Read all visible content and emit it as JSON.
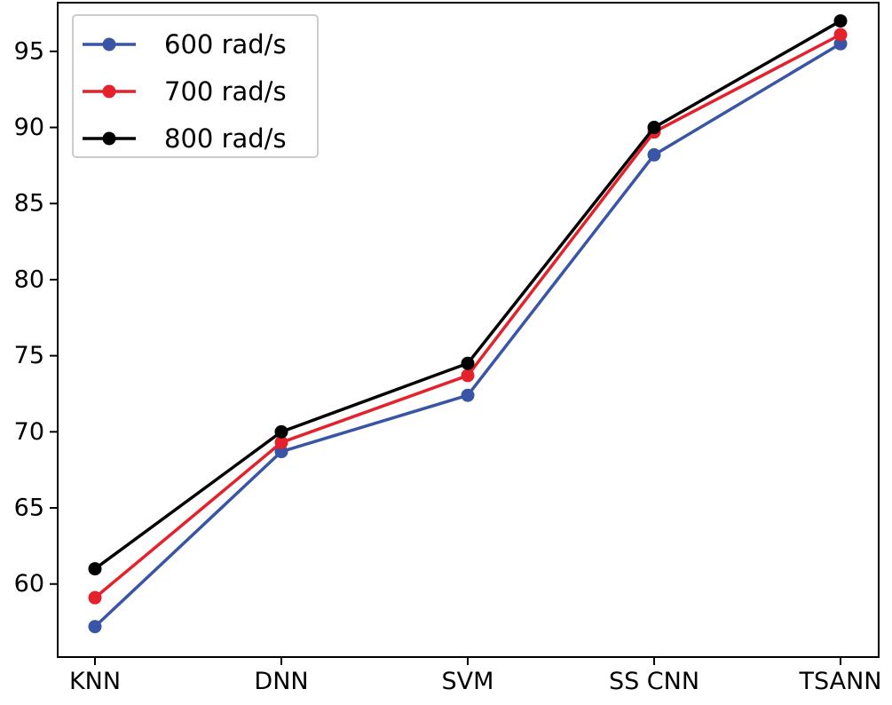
{
  "chart_data": {
    "type": "line",
    "title": "",
    "xlabel": "",
    "ylabel": "",
    "categories": [
      "KNN",
      "DNN",
      "SVM",
      "SS CNN",
      "TSANN"
    ],
    "ylim": [
      55.2,
      98.2
    ],
    "yticks": [
      60,
      65,
      70,
      75,
      80,
      85,
      90,
      95
    ],
    "grid": false,
    "legend_position": "top-left",
    "series": [
      {
        "name": "600 rad/s",
        "color": "#3a55a5",
        "values": [
          57.2,
          68.7,
          72.4,
          88.2,
          95.5
        ]
      },
      {
        "name": "700 rad/s",
        "color": "#e3222b",
        "values": [
          59.1,
          69.3,
          73.7,
          89.7,
          96.1
        ]
      },
      {
        "name": "800 rad/s",
        "color": "#000000",
        "values": [
          61.0,
          70.0,
          74.5,
          90.0,
          97.0
        ]
      }
    ]
  }
}
